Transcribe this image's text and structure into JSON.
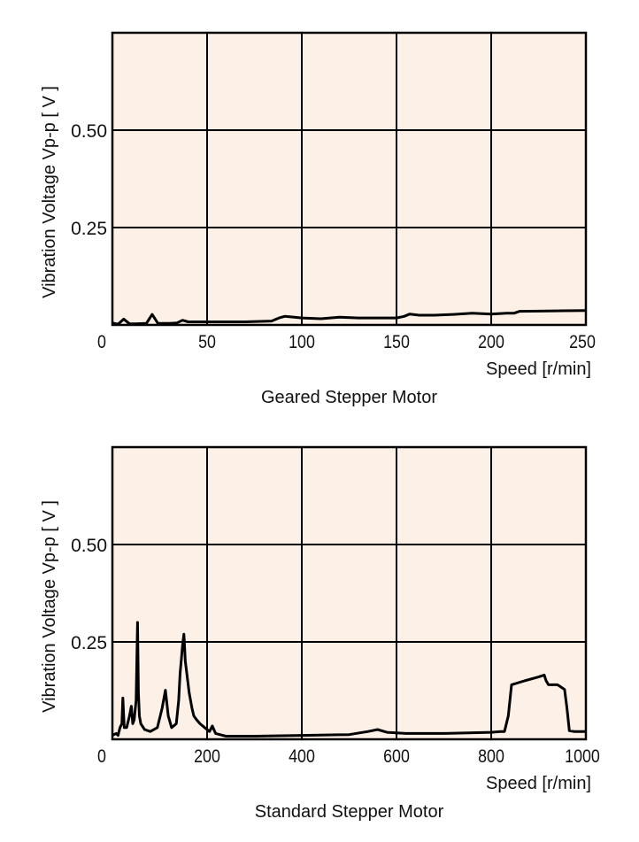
{
  "colors": {
    "plot_background": "#fdf0e6",
    "line": "#000000",
    "grid": "#000000"
  },
  "chart_data": [
    {
      "type": "line",
      "title": "Geared Stepper Motor",
      "xlabel": "Speed [r/min]",
      "ylabel": "Vibration Voltage Vp-p [ V ]",
      "xlim": [
        0,
        250
      ],
      "ylim": [
        0,
        0.75
      ],
      "grid": true,
      "xticks": [
        0,
        50,
        100,
        150,
        200,
        250
      ],
      "xtick_labels": [
        "0",
        "50",
        "100",
        "150",
        "200",
        "250"
      ],
      "yticks": [
        0.25,
        0.5
      ],
      "ytick_labels": [
        "0.25",
        "0.50"
      ],
      "x": [
        0,
        3,
        6,
        9,
        12,
        18,
        21,
        24,
        30,
        34,
        37,
        40,
        50,
        70,
        84,
        88,
        91,
        96,
        100,
        110,
        120,
        130,
        150,
        154,
        157,
        162,
        170,
        180,
        190,
        200,
        208,
        212,
        215,
        230,
        250
      ],
      "y": [
        0.005,
        0.002,
        0.015,
        0.003,
        0.003,
        0.004,
        0.027,
        0.004,
        0.004,
        0.005,
        0.012,
        0.008,
        0.008,
        0.008,
        0.01,
        0.018,
        0.022,
        0.02,
        0.018,
        0.016,
        0.02,
        0.018,
        0.018,
        0.022,
        0.028,
        0.025,
        0.025,
        0.027,
        0.03,
        0.028,
        0.03,
        0.03,
        0.035,
        0.036,
        0.037
      ]
    },
    {
      "type": "line",
      "title": "Standard Stepper Motor",
      "xlabel": "Speed [r/min]",
      "ylabel": "Vibration Voltage Vp-p [ V ]",
      "xlim": [
        0,
        1000
      ],
      "ylim": [
        0,
        0.75
      ],
      "grid": true,
      "xticks": [
        0,
        200,
        400,
        600,
        800,
        1000
      ],
      "xtick_labels": [
        "0",
        "200",
        "400",
        "600",
        "800",
        "1000"
      ],
      "yticks": [
        0.25,
        0.5
      ],
      "ytick_labels": [
        "0.25",
        "0.50"
      ],
      "x": [
        0,
        8,
        12,
        16,
        20,
        22,
        25,
        30,
        36,
        40,
        43,
        46,
        50,
        53,
        55,
        57,
        60,
        68,
        80,
        95,
        105,
        112,
        118,
        125,
        135,
        140,
        143,
        146,
        148,
        151,
        154,
        156,
        159,
        162,
        165,
        168,
        172,
        178,
        185,
        195,
        205,
        211,
        218,
        240,
        300,
        400,
        500,
        540,
        560,
        580,
        620,
        700,
        800,
        820,
        828,
        836,
        843,
        870,
        900,
        912,
        916,
        921,
        940,
        955,
        960,
        965,
        975,
        1000
      ],
      "y": [
        0.01,
        0.015,
        0.01,
        0.03,
        0.04,
        0.106,
        0.03,
        0.03,
        0.06,
        0.085,
        0.04,
        0.05,
        0.1,
        0.3,
        0.12,
        0.06,
        0.04,
        0.025,
        0.02,
        0.03,
        0.08,
        0.126,
        0.06,
        0.03,
        0.04,
        0.1,
        0.17,
        0.21,
        0.24,
        0.27,
        0.2,
        0.18,
        0.15,
        0.12,
        0.1,
        0.08,
        0.06,
        0.05,
        0.04,
        0.03,
        0.02,
        0.034,
        0.015,
        0.008,
        0.008,
        0.01,
        0.012,
        0.02,
        0.025,
        0.018,
        0.015,
        0.015,
        0.018,
        0.02,
        0.02,
        0.06,
        0.14,
        0.15,
        0.16,
        0.165,
        0.15,
        0.14,
        0.14,
        0.128,
        0.08,
        0.022,
        0.02,
        0.02
      ]
    }
  ]
}
